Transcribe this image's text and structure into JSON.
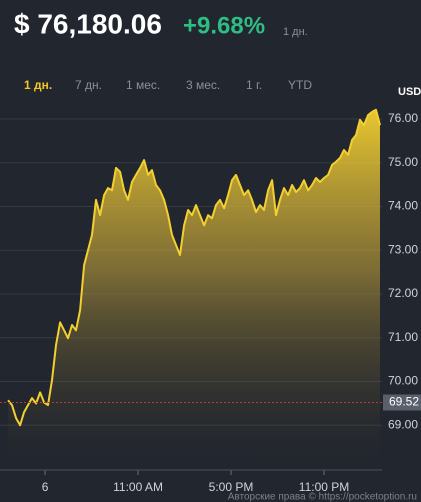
{
  "header": {
    "price": "$ 76,180.06",
    "change": "+9.68%",
    "period": "1 дн."
  },
  "tabs": [
    "1 дн.",
    "7 дн.",
    "1 мес.",
    "3 мес.",
    "1 г.",
    "YTD"
  ],
  "copyright": "Авторские права © https://pocketoption.ru",
  "chart_data": {
    "type": "area",
    "y_label": "USD",
    "color": "#f3d02f",
    "grid": true,
    "x": [
      -2.39,
      -2.13,
      -1.87,
      -1.61,
      -1.35,
      -1.1,
      -0.84,
      -0.58,
      -0.32,
      -0.06,
      0.19,
      0.45,
      0.71,
      0.97,
      1.23,
      1.48,
      1.74,
      2.0,
      2.26,
      2.52,
      2.77,
      3.03,
      3.29,
      3.55,
      3.81,
      4.06,
      4.32,
      4.58,
      4.84,
      5.1,
      5.35,
      5.61,
      5.87,
      6.13,
      6.39,
      6.65,
      6.9,
      7.16,
      7.42,
      7.68,
      7.94,
      8.19,
      8.45,
      8.71,
      8.97,
      9.23,
      9.48,
      9.74,
      10.0,
      10.26,
      10.52,
      10.77,
      11.03,
      11.29,
      11.55,
      11.81,
      12.06,
      12.32,
      12.58,
      12.84,
      13.1,
      13.35,
      13.61,
      13.87,
      14.13,
      14.39,
      14.65,
      14.9,
      15.16,
      15.42,
      15.68,
      15.94,
      16.19,
      16.45,
      16.71,
      16.97,
      17.23,
      17.48,
      17.74,
      18.0,
      18.26,
      18.52,
      18.77,
      19.03,
      19.29,
      19.55,
      19.81,
      20.06,
      20.32,
      20.58,
      20.84,
      21.1,
      21.35,
      21.61
    ],
    "values": [
      69.57,
      69.46,
      69.16,
      69.0,
      69.3,
      69.46,
      69.62,
      69.5,
      69.75,
      69.52,
      69.46,
      70.03,
      70.83,
      71.35,
      71.17,
      70.99,
      71.29,
      71.17,
      71.63,
      72.66,
      73.0,
      73.35,
      74.15,
      73.8,
      74.26,
      74.42,
      74.37,
      74.88,
      74.79,
      74.37,
      74.15,
      74.56,
      74.72,
      74.88,
      75.06,
      74.72,
      74.83,
      74.49,
      74.37,
      74.15,
      73.8,
      73.35,
      73.12,
      72.89,
      73.57,
      73.92,
      73.8,
      74.03,
      73.8,
      73.57,
      73.8,
      73.73,
      74.03,
      74.15,
      73.96,
      74.26,
      74.6,
      74.72,
      74.49,
      74.26,
      74.37,
      74.15,
      73.87,
      74.03,
      73.92,
      74.37,
      74.6,
      73.8,
      74.15,
      74.42,
      74.26,
      74.49,
      74.33,
      74.42,
      74.6,
      74.37,
      74.49,
      74.65,
      74.56,
      74.65,
      74.72,
      74.95,
      75.02,
      75.11,
      75.29,
      75.18,
      75.52,
      75.63,
      75.98,
      75.86,
      76.09,
      76.16,
      76.21,
      75.86
    ],
    "current_value": 69.52,
    "current_color": "#c0392b",
    "xlim": [
      -2.39,
      21.74
    ],
    "ylim": [
      68,
      76.25
    ],
    "xticks": [
      {
        "value": 0,
        "label": "6"
      },
      {
        "value": 6,
        "label": "11:00 AM"
      },
      {
        "value": 12,
        "label": "5:00 PM"
      },
      {
        "value": 18,
        "label": "11:00 PM"
      }
    ],
    "yticks": [
      {
        "value": 69,
        "label": "69.00"
      },
      {
        "value": 70,
        "label": "70.00"
      },
      {
        "value": 71,
        "label": "71.00"
      },
      {
        "value": 72,
        "label": "72.00"
      },
      {
        "value": 73,
        "label": "73.00"
      },
      {
        "value": 74,
        "label": "74.00"
      },
      {
        "value": 75,
        "label": "75.00"
      },
      {
        "value": 76,
        "label": "76.00"
      }
    ]
  }
}
